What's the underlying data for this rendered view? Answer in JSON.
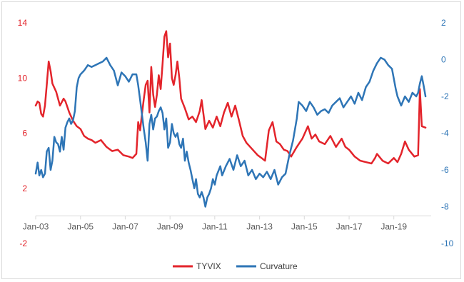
{
  "chart_data": {
    "type": "line",
    "title": "",
    "xlabel": "",
    "ylabel": "",
    "grid": false,
    "legend_position": "bottom",
    "x_range": [
      "2003-01",
      "2020-08"
    ],
    "ylim_left": [
      -2,
      14
    ],
    "ylim_right": [
      -10,
      2
    ],
    "y_ticks_left": [
      "-2",
      "2",
      "6",
      "10",
      "14"
    ],
    "y_ticks_right": [
      "-10",
      "-8",
      "-6",
      "-4",
      "-2",
      "0",
      "2"
    ],
    "x_ticks": [
      {
        "label": "Jan-03",
        "date": "2003-01"
      },
      {
        "label": "Jan-05",
        "date": "2005-01"
      },
      {
        "label": "Jan-07",
        "date": "2007-01"
      },
      {
        "label": "Jan-09",
        "date": "2009-01"
      },
      {
        "label": "Jan-11",
        "date": "2011-01"
      },
      {
        "label": "Jan-13",
        "date": "2013-01"
      },
      {
        "label": "Jan-15",
        "date": "2015-01"
      },
      {
        "label": "Jan-17",
        "date": "2017-01"
      },
      {
        "label": "Jan-19",
        "date": "2019-01"
      }
    ],
    "colors": {
      "TYVIX": "#e3242b",
      "Curvature": "#2e75b6"
    },
    "series": [
      {
        "name": "TYVIX",
        "axis": "left",
        "color": "#e3242b",
        "points": [
          [
            "2003-01",
            8.0
          ],
          [
            "2003-02",
            8.3
          ],
          [
            "2003-03",
            8.2
          ],
          [
            "2003-04",
            7.4
          ],
          [
            "2003-05",
            7.2
          ],
          [
            "2003-06",
            8.0
          ],
          [
            "2003-07",
            9.5
          ],
          [
            "2003-08",
            11.2
          ],
          [
            "2003-09",
            10.5
          ],
          [
            "2003-10",
            9.6
          ],
          [
            "2003-12",
            9.0
          ],
          [
            "2004-02",
            8.0
          ],
          [
            "2004-04",
            8.5
          ],
          [
            "2004-05",
            8.3
          ],
          [
            "2004-07",
            7.5
          ],
          [
            "2004-09",
            6.9
          ],
          [
            "2004-11",
            6.5
          ],
          [
            "2005-01",
            6.3
          ],
          [
            "2005-03",
            5.8
          ],
          [
            "2005-05",
            5.6
          ],
          [
            "2005-07",
            5.5
          ],
          [
            "2005-09",
            5.3
          ],
          [
            "2005-12",
            5.5
          ],
          [
            "2006-03",
            5.0
          ],
          [
            "2006-06",
            4.7
          ],
          [
            "2006-09",
            4.8
          ],
          [
            "2006-12",
            4.4
          ],
          [
            "2007-03",
            4.3
          ],
          [
            "2007-05",
            4.2
          ],
          [
            "2007-07",
            4.5
          ],
          [
            "2007-08",
            6.8
          ],
          [
            "2007-09",
            6.2
          ],
          [
            "2007-10",
            7.4
          ],
          [
            "2007-11",
            8.5
          ],
          [
            "2007-12",
            9.5
          ],
          [
            "2008-01",
            9.8
          ],
          [
            "2008-02",
            7.5
          ],
          [
            "2008-03",
            10.8
          ],
          [
            "2008-04",
            8.8
          ],
          [
            "2008-05",
            7.9
          ],
          [
            "2008-06",
            8.8
          ],
          [
            "2008-07",
            10.2
          ],
          [
            "2008-08",
            9.2
          ],
          [
            "2008-09",
            11.0
          ],
          [
            "2008-10",
            13.0
          ],
          [
            "2008-11",
            13.4
          ],
          [
            "2008-12",
            11.5
          ],
          [
            "2009-01",
            12.5
          ],
          [
            "2009-02",
            10.0
          ],
          [
            "2009-03",
            9.5
          ],
          [
            "2009-04",
            10.2
          ],
          [
            "2009-05",
            11.2
          ],
          [
            "2009-06",
            10.0
          ],
          [
            "2009-07",
            8.5
          ],
          [
            "2009-09",
            7.8
          ],
          [
            "2009-11",
            7.0
          ],
          [
            "2010-01",
            7.2
          ],
          [
            "2010-03",
            6.8
          ],
          [
            "2010-05",
            7.6
          ],
          [
            "2010-06",
            8.4
          ],
          [
            "2010-08",
            6.3
          ],
          [
            "2010-10",
            6.9
          ],
          [
            "2010-12",
            6.4
          ],
          [
            "2011-02",
            7.2
          ],
          [
            "2011-04",
            6.5
          ],
          [
            "2011-06",
            7.5
          ],
          [
            "2011-08",
            8.2
          ],
          [
            "2011-10",
            7.2
          ],
          [
            "2011-12",
            8.0
          ],
          [
            "2012-02",
            6.9
          ],
          [
            "2012-04",
            5.8
          ],
          [
            "2012-06",
            5.3
          ],
          [
            "2012-08",
            5.0
          ],
          [
            "2012-10",
            4.7
          ],
          [
            "2012-12",
            4.4
          ],
          [
            "2013-02",
            4.2
          ],
          [
            "2013-04",
            4.0
          ],
          [
            "2013-06",
            6.2
          ],
          [
            "2013-08",
            6.8
          ],
          [
            "2013-10",
            5.4
          ],
          [
            "2013-12",
            5.2
          ],
          [
            "2014-02",
            4.8
          ],
          [
            "2014-04",
            4.7
          ],
          [
            "2014-06",
            4.3
          ],
          [
            "2014-09",
            5.0
          ],
          [
            "2014-12",
            5.6
          ],
          [
            "2015-03",
            6.5
          ],
          [
            "2015-05",
            5.6
          ],
          [
            "2015-07",
            5.9
          ],
          [
            "2015-09",
            5.4
          ],
          [
            "2015-12",
            5.2
          ],
          [
            "2016-03",
            5.8
          ],
          [
            "2016-06",
            5.0
          ],
          [
            "2016-09",
            5.6
          ],
          [
            "2016-11",
            5.0
          ],
          [
            "2017-01",
            4.8
          ],
          [
            "2017-04",
            4.3
          ],
          [
            "2017-07",
            4.0
          ],
          [
            "2017-10",
            3.9
          ],
          [
            "2018-01",
            3.8
          ],
          [
            "2018-03",
            4.2
          ],
          [
            "2018-04",
            4.5
          ],
          [
            "2018-07",
            4.0
          ],
          [
            "2018-10",
            3.8
          ],
          [
            "2019-01",
            4.2
          ],
          [
            "2019-03",
            3.9
          ],
          [
            "2019-05",
            4.5
          ],
          [
            "2019-07",
            5.4
          ],
          [
            "2019-09",
            4.8
          ],
          [
            "2019-12",
            4.3
          ],
          [
            "2020-02",
            4.4
          ],
          [
            "2020-03",
            9.2
          ],
          [
            "2020-04",
            6.5
          ],
          [
            "2020-06",
            6.4
          ]
        ]
      },
      {
        "name": "Curvature",
        "axis": "right",
        "color": "#2e75b6",
        "points": [
          [
            "2003-01",
            -6.2
          ],
          [
            "2003-02",
            -5.6
          ],
          [
            "2003-03",
            -6.3
          ],
          [
            "2003-04",
            -6.0
          ],
          [
            "2003-05",
            -6.4
          ],
          [
            "2003-06",
            -6.2
          ],
          [
            "2003-07",
            -5.0
          ],
          [
            "2003-08",
            -4.8
          ],
          [
            "2003-09",
            -6.0
          ],
          [
            "2003-10",
            -5.5
          ],
          [
            "2003-11",
            -4.2
          ],
          [
            "2003-12",
            -4.5
          ],
          [
            "2004-01",
            -4.6
          ],
          [
            "2004-02",
            -5.0
          ],
          [
            "2004-03",
            -4.2
          ],
          [
            "2004-04",
            -4.9
          ],
          [
            "2004-05",
            -3.7
          ],
          [
            "2004-06",
            -3.4
          ],
          [
            "2004-07",
            -3.2
          ],
          [
            "2004-08",
            -3.5
          ],
          [
            "2004-09",
            -3.3
          ],
          [
            "2004-10",
            -2.8
          ],
          [
            "2004-11",
            -1.5
          ],
          [
            "2004-12",
            -1.0
          ],
          [
            "2005-01",
            -0.8
          ],
          [
            "2005-03",
            -0.6
          ],
          [
            "2005-05",
            -0.3
          ],
          [
            "2005-07",
            -0.4
          ],
          [
            "2005-09",
            -0.3
          ],
          [
            "2005-11",
            -0.2
          ],
          [
            "2006-01",
            -0.1
          ],
          [
            "2006-03",
            0.1
          ],
          [
            "2006-05",
            -0.3
          ],
          [
            "2006-07",
            -0.6
          ],
          [
            "2006-09",
            -1.4
          ],
          [
            "2006-11",
            -0.7
          ],
          [
            "2007-01",
            -0.9
          ],
          [
            "2007-03",
            -1.2
          ],
          [
            "2007-05",
            -0.8
          ],
          [
            "2007-07",
            -0.8
          ],
          [
            "2007-08",
            -1.4
          ],
          [
            "2007-09",
            -2.2
          ],
          [
            "2007-10",
            -3.0
          ],
          [
            "2007-11",
            -3.8
          ],
          [
            "2007-12",
            -4.5
          ],
          [
            "2008-01",
            -5.5
          ],
          [
            "2008-02",
            -3.5
          ],
          [
            "2008-03",
            -3.0
          ],
          [
            "2008-04",
            -3.8
          ],
          [
            "2008-05",
            -3.2
          ],
          [
            "2008-06",
            -3.1
          ],
          [
            "2008-07",
            -2.8
          ],
          [
            "2008-08",
            -2.6
          ],
          [
            "2008-09",
            -2.9
          ],
          [
            "2008-10",
            -3.8
          ],
          [
            "2008-11",
            -3.2
          ],
          [
            "2008-12",
            -4.8
          ],
          [
            "2009-01",
            -4.5
          ],
          [
            "2009-02",
            -3.5
          ],
          [
            "2009-03",
            -4.0
          ],
          [
            "2009-04",
            -4.2
          ],
          [
            "2009-05",
            -4.0
          ],
          [
            "2009-06",
            -4.6
          ],
          [
            "2009-07",
            -4.8
          ],
          [
            "2009-08",
            -4.3
          ],
          [
            "2009-09",
            -5.5
          ],
          [
            "2009-10",
            -5.0
          ],
          [
            "2009-11",
            -5.6
          ],
          [
            "2009-12",
            -6.0
          ],
          [
            "2010-01",
            -6.5
          ],
          [
            "2010-02",
            -7.0
          ],
          [
            "2010-03",
            -6.5
          ],
          [
            "2010-04",
            -7.3
          ],
          [
            "2010-05",
            -7.5
          ],
          [
            "2010-06",
            -7.2
          ],
          [
            "2010-07",
            -7.5
          ],
          [
            "2010-08",
            -8.0
          ],
          [
            "2010-09",
            -7.5
          ],
          [
            "2010-10",
            -7.3
          ],
          [
            "2010-11",
            -7.0
          ],
          [
            "2010-12",
            -6.5
          ],
          [
            "2011-01",
            -6.8
          ],
          [
            "2011-02",
            -6.3
          ],
          [
            "2011-04",
            -5.8
          ],
          [
            "2011-05",
            -6.3
          ],
          [
            "2011-07",
            -5.8
          ],
          [
            "2011-09",
            -5.4
          ],
          [
            "2011-11",
            -6.0
          ],
          [
            "2012-01",
            -5.2
          ],
          [
            "2012-03",
            -5.8
          ],
          [
            "2012-05",
            -5.5
          ],
          [
            "2012-07",
            -6.3
          ],
          [
            "2012-09",
            -6.0
          ],
          [
            "2012-11",
            -6.5
          ],
          [
            "2013-01",
            -6.2
          ],
          [
            "2013-03",
            -6.4
          ],
          [
            "2013-05",
            -6.1
          ],
          [
            "2013-07",
            -6.5
          ],
          [
            "2013-09",
            -6.0
          ],
          [
            "2013-11",
            -6.8
          ],
          [
            "2014-01",
            -6.4
          ],
          [
            "2014-03",
            -6.2
          ],
          [
            "2014-05",
            -5.2
          ],
          [
            "2014-07",
            -4.4
          ],
          [
            "2014-09",
            -3.2
          ],
          [
            "2014-10",
            -2.3
          ],
          [
            "2014-12",
            -2.5
          ],
          [
            "2015-02",
            -2.8
          ],
          [
            "2015-04",
            -2.3
          ],
          [
            "2015-06",
            -2.6
          ],
          [
            "2015-08",
            -3.0
          ],
          [
            "2015-10",
            -2.8
          ],
          [
            "2015-12",
            -2.7
          ],
          [
            "2016-02",
            -2.9
          ],
          [
            "2016-04",
            -2.5
          ],
          [
            "2016-06",
            -2.3
          ],
          [
            "2016-08",
            -2.1
          ],
          [
            "2016-10",
            -2.6
          ],
          [
            "2016-12",
            -2.3
          ],
          [
            "2017-02",
            -2.0
          ],
          [
            "2017-04",
            -2.4
          ],
          [
            "2017-06",
            -1.8
          ],
          [
            "2017-08",
            -2.2
          ],
          [
            "2017-10",
            -1.5
          ],
          [
            "2017-12",
            -1.2
          ],
          [
            "2018-02",
            -0.6
          ],
          [
            "2018-04",
            -0.2
          ],
          [
            "2018-06",
            0.1
          ],
          [
            "2018-08",
            0.0
          ],
          [
            "2018-10",
            -0.3
          ],
          [
            "2018-12",
            -0.5
          ],
          [
            "2019-02",
            -1.6
          ],
          [
            "2019-03",
            -2.0
          ],
          [
            "2019-05",
            -2.5
          ],
          [
            "2019-07",
            -2.0
          ],
          [
            "2019-09",
            -2.3
          ],
          [
            "2019-11",
            -1.8
          ],
          [
            "2020-01",
            -2.0
          ],
          [
            "2020-02",
            -1.8
          ],
          [
            "2020-03",
            -1.3
          ],
          [
            "2020-04",
            -0.9
          ],
          [
            "2020-05",
            -1.4
          ],
          [
            "2020-06",
            -2.0
          ]
        ]
      }
    ]
  }
}
